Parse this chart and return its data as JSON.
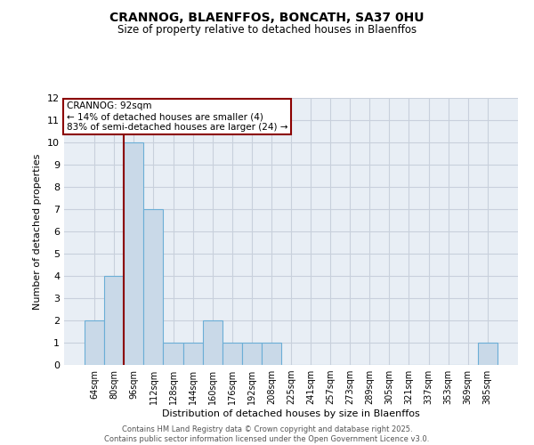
{
  "title": "CRANNOG, BLAENFFOS, BONCATH, SA37 0HU",
  "subtitle": "Size of property relative to detached houses in Blaenffos",
  "xlabel": "Distribution of detached houses by size in Blaenffos",
  "ylabel": "Number of detached properties",
  "categories": [
    "64sqm",
    "80sqm",
    "96sqm",
    "112sqm",
    "128sqm",
    "144sqm",
    "160sqm",
    "176sqm",
    "192sqm",
    "208sqm",
    "225sqm",
    "241sqm",
    "257sqm",
    "273sqm",
    "289sqm",
    "305sqm",
    "321sqm",
    "337sqm",
    "353sqm",
    "369sqm",
    "385sqm"
  ],
  "values": [
    2,
    4,
    10,
    7,
    1,
    1,
    2,
    1,
    1,
    1,
    0,
    0,
    0,
    0,
    0,
    0,
    0,
    0,
    0,
    0,
    1
  ],
  "bar_color": "#c9d9e8",
  "bar_edge_color": "#6baed6",
  "vline_x": 1.5,
  "vline_color": "#8b0000",
  "annotation_text": "CRANNOG: 92sqm\n← 14% of detached houses are smaller (4)\n83% of semi-detached houses are larger (24) →",
  "annotation_box_color": "#8b0000",
  "ylim": [
    0,
    12
  ],
  "yticks": [
    0,
    1,
    2,
    3,
    4,
    5,
    6,
    7,
    8,
    9,
    10,
    11,
    12
  ],
  "grid_color": "#c8d0dc",
  "background_color": "#e8eef5",
  "footer": "Contains HM Land Registry data © Crown copyright and database right 2025.\nContains public sector information licensed under the Open Government Licence v3.0."
}
